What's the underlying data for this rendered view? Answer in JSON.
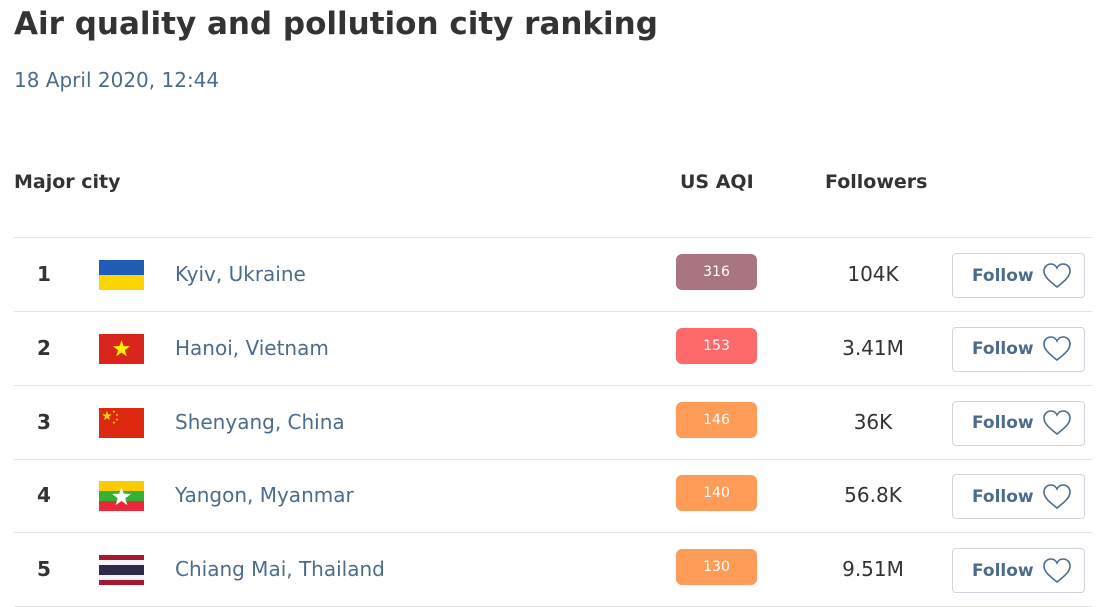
{
  "header": {
    "title": "Air quality and pollution city ranking",
    "date": "18 April 2020, 12:44"
  },
  "table": {
    "columns": [
      "Major city",
      "US AQI",
      "Followers"
    ],
    "rows": [
      {
        "rank": 1,
        "city": "Kyiv, Ukraine",
        "aqi": 316,
        "aqi_color": "#a97580",
        "followers": "104K",
        "button": "Follow"
      },
      {
        "rank": 2,
        "city": "Hanoi, Vietnam",
        "aqi": 153,
        "aqi_color": "#fe6a69",
        "followers": "3.41M",
        "button": "Follow"
      },
      {
        "rank": 3,
        "city": "Shenyang, China",
        "aqi": 146,
        "aqi_color": "#fe9b57",
        "followers": "36K",
        "button": "Follow"
      },
      {
        "rank": 4,
        "city": "Yangon, Myanmar",
        "aqi": 140,
        "aqi_color": "#fe9b57",
        "followers": "56.8K",
        "button": "Follow"
      },
      {
        "rank": 5,
        "city": "Chiang Mai, Thailand",
        "aqi": 130,
        "aqi_color": "#fe9b57",
        "followers": "9.51M",
        "button": "Follow"
      }
    ]
  }
}
